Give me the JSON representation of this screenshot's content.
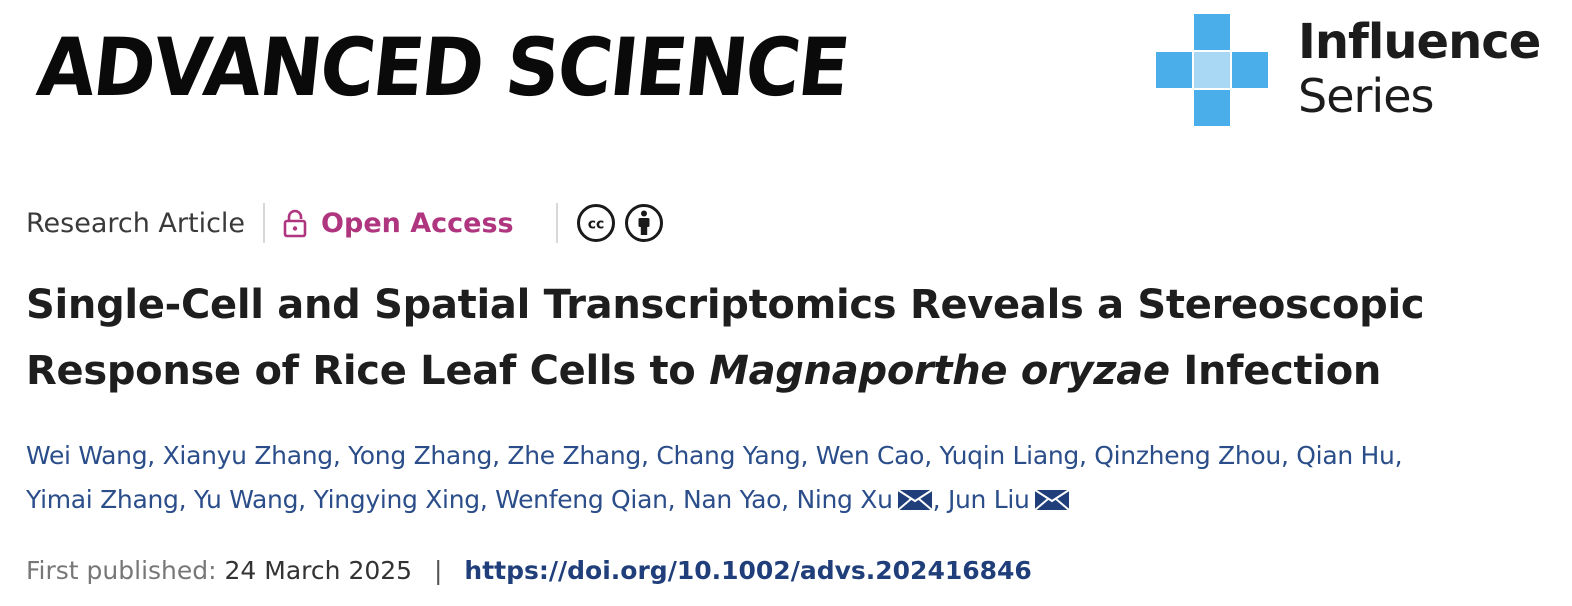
{
  "header": {
    "journal_name": "ADVANCED SCIENCE",
    "series_line1": "Influence",
    "series_line2": "Series",
    "series_color": "#4AAEEA"
  },
  "meta": {
    "article_type": "Research Article",
    "access_label": "Open Access",
    "access_color": "#B0357F",
    "license_icons": [
      "cc-icon",
      "by-attribution-icon"
    ]
  },
  "title": {
    "part1": "Single-Cell and Spatial Transcriptomics Reveals a Stereoscopic Response of Rice Leaf Cells to ",
    "italic": "Magnaporthe oryzae",
    "part2": " Infection"
  },
  "authors": [
    {
      "name": "Wei Wang",
      "corresponding": false
    },
    {
      "name": "Xianyu Zhang",
      "corresponding": false
    },
    {
      "name": "Yong Zhang",
      "corresponding": false
    },
    {
      "name": "Zhe Zhang",
      "corresponding": false
    },
    {
      "name": "Chang Yang",
      "corresponding": false
    },
    {
      "name": "Wen Cao",
      "corresponding": false
    },
    {
      "name": "Yuqin Liang",
      "corresponding": false
    },
    {
      "name": "Qinzheng Zhou",
      "corresponding": false
    },
    {
      "name": "Qian Hu",
      "corresponding": false
    },
    {
      "name": "Yimai Zhang",
      "corresponding": false
    },
    {
      "name": "Yu Wang",
      "corresponding": false
    },
    {
      "name": "Yingying Xing",
      "corresponding": false
    },
    {
      "name": "Wenfeng Qian",
      "corresponding": false
    },
    {
      "name": "Nan Yao",
      "corresponding": false
    },
    {
      "name": "Ning Xu",
      "corresponding": true
    },
    {
      "name": "Jun Liu",
      "corresponding": true
    }
  ],
  "publication": {
    "label": "First published:",
    "date": "24 March 2025",
    "separator": "|",
    "doi": "https://doi.org/10.1002/advs.202416846"
  }
}
